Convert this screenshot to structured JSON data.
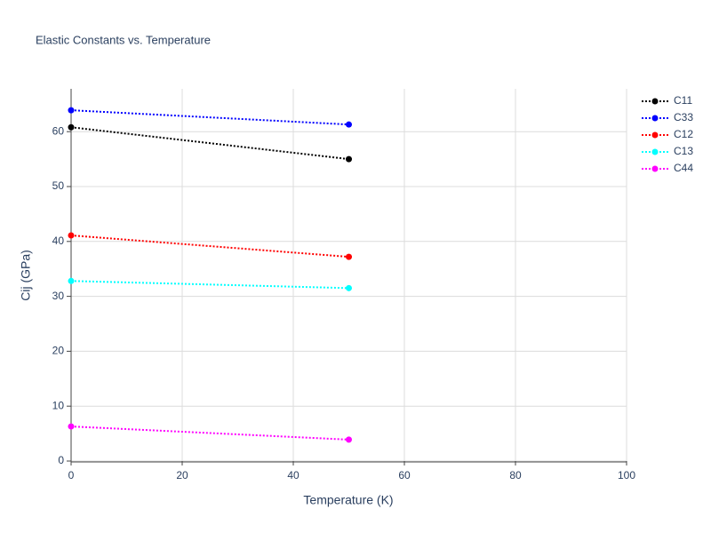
{
  "chart_data": {
    "type": "line",
    "title": "Elastic Constants vs. Temperature",
    "x_label": "Temperature (K)",
    "y_label": "Cij (GPa)",
    "x": [
      0,
      50
    ],
    "series": [
      {
        "name": "C11",
        "color": "#000000",
        "values": [
          60.8,
          55.0
        ]
      },
      {
        "name": "C33",
        "color": "#0000ff",
        "values": [
          63.9,
          61.3
        ]
      },
      {
        "name": "C12",
        "color": "#ff0000",
        "values": [
          41.1,
          37.2
        ]
      },
      {
        "name": "C13",
        "color": "#00ffff",
        "values": [
          32.8,
          31.5
        ]
      },
      {
        "name": "C44",
        "color": "#ff00ff",
        "values": [
          6.3,
          3.9
        ]
      }
    ],
    "xlim": [
      0,
      100
    ],
    "xticks": [
      0,
      20,
      40,
      60,
      80,
      100
    ],
    "ylim": [
      0,
      67.8
    ],
    "yticks": [
      0,
      10,
      20,
      30,
      40,
      50,
      60
    ],
    "grid": true,
    "legend": "top-right"
  }
}
